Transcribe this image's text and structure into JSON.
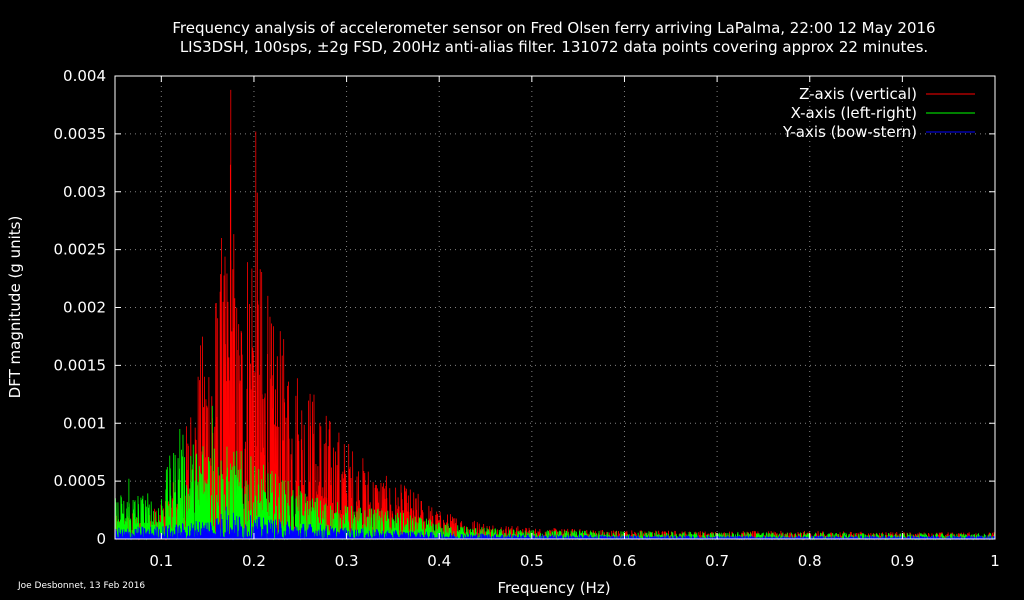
{
  "chart_data": {
    "type": "line",
    "title_line1": "Frequency analysis of accelerometer sensor on Fred Olsen ferry arriving LaPalma, 22:00 12 May 2016",
    "title_line2": "LIS3DSH, 100sps, ±2g FSD, 200Hz anti-alias filter. 131072 data points covering approx 22 minutes.",
    "xlabel": "Frequency (Hz)",
    "ylabel": "DFT magnitude (g units)",
    "xlim": [
      0.05,
      1.0
    ],
    "ylim": [
      0,
      0.004
    ],
    "x_ticks": [
      0.1,
      0.2,
      0.3,
      0.4,
      0.5,
      0.6,
      0.7,
      0.8,
      0.9,
      1.0
    ],
    "x_tick_labels": [
      "0.1",
      "0.2",
      "0.3",
      "0.4",
      "0.5",
      "0.6",
      "0.7",
      "0.8",
      "0.9",
      "1"
    ],
    "y_ticks": [
      0,
      0.0005,
      0.001,
      0.0015,
      0.002,
      0.0025,
      0.003,
      0.0035,
      0.004
    ],
    "y_tick_labels": [
      "0",
      "0.0005",
      "0.001",
      "0.0015",
      "0.002",
      "0.0025",
      "0.003",
      "0.0035",
      "0.004"
    ],
    "grid": true,
    "legend_position": "top-right",
    "series": [
      {
        "name": "Z-axis (vertical)",
        "color": "#ff0000",
        "envelope": [
          [
            0.05,
            0.0002
          ],
          [
            0.08,
            0.00025
          ],
          [
            0.1,
            0.0003
          ],
          [
            0.11,
            0.00045
          ],
          [
            0.12,
            0.0006
          ],
          [
            0.13,
            0.0012
          ],
          [
            0.14,
            0.0016
          ],
          [
            0.15,
            0.0021
          ],
          [
            0.16,
            0.0023
          ],
          [
            0.17,
            0.0025
          ],
          [
            0.175,
            0.00388
          ],
          [
            0.18,
            0.0023
          ],
          [
            0.19,
            0.0025
          ],
          [
            0.2,
            0.0035
          ],
          [
            0.21,
            0.0022
          ],
          [
            0.22,
            0.0019
          ],
          [
            0.24,
            0.0017
          ],
          [
            0.26,
            0.0014
          ],
          [
            0.28,
            0.0011
          ],
          [
            0.3,
            0.0009
          ],
          [
            0.32,
            0.0007
          ],
          [
            0.35,
            0.0005
          ],
          [
            0.37,
            0.00045
          ],
          [
            0.4,
            0.00025
          ],
          [
            0.45,
            0.00015
          ],
          [
            0.5,
            0.0001
          ],
          [
            0.6,
            8e-05
          ],
          [
            0.7,
            7e-05
          ],
          [
            0.8,
            7e-05
          ],
          [
            0.9,
            6e-05
          ],
          [
            1.0,
            6e-05
          ]
        ],
        "peaks": [
          [
            0.175,
            0.00388
          ],
          [
            0.202,
            0.00352
          ],
          [
            0.165,
            0.0026
          ],
          [
            0.215,
            0.0021
          ]
        ]
      },
      {
        "name": "X-axis (left-right)",
        "color": "#00ff00",
        "envelope": [
          [
            0.05,
            0.0004
          ],
          [
            0.07,
            0.00045
          ],
          [
            0.09,
            0.0004
          ],
          [
            0.1,
            0.00045
          ],
          [
            0.11,
            0.00075
          ],
          [
            0.12,
            0.00095
          ],
          [
            0.13,
            0.00085
          ],
          [
            0.14,
            0.0009
          ],
          [
            0.15,
            0.0011
          ],
          [
            0.16,
            0.00085
          ],
          [
            0.18,
            0.0008
          ],
          [
            0.2,
            0.0007
          ],
          [
            0.22,
            0.0006
          ],
          [
            0.24,
            0.0005
          ],
          [
            0.26,
            0.0004
          ],
          [
            0.3,
            0.0003
          ],
          [
            0.35,
            0.00025
          ],
          [
            0.4,
            0.00015
          ],
          [
            0.45,
            0.0001
          ],
          [
            0.5,
            8e-05
          ],
          [
            0.6,
            7e-05
          ],
          [
            0.7,
            6e-05
          ],
          [
            0.8,
            6e-05
          ],
          [
            0.9,
            5e-05
          ],
          [
            1.0,
            5e-05
          ]
        ],
        "peaks": [
          [
            0.155,
            0.00115
          ],
          [
            0.12,
            0.00095
          ],
          [
            0.065,
            0.00052
          ]
        ]
      },
      {
        "name": "Y-axis (bow-stern)",
        "color": "#0000ff",
        "envelope": [
          [
            0.05,
            0.0001
          ],
          [
            0.1,
            0.00012
          ],
          [
            0.13,
            0.00015
          ],
          [
            0.15,
            0.0002
          ],
          [
            0.17,
            0.00025
          ],
          [
            0.2,
            0.0002
          ],
          [
            0.25,
            0.00015
          ],
          [
            0.3,
            0.0001
          ],
          [
            0.4,
            6e-05
          ],
          [
            0.5,
            4e-05
          ],
          [
            0.7,
            3e-05
          ],
          [
            1.0,
            3e-05
          ]
        ],
        "peaks": [
          [
            0.17,
            0.00028
          ]
        ]
      }
    ]
  },
  "credit": "Joe Desbonnet, 13 Feb 2016"
}
